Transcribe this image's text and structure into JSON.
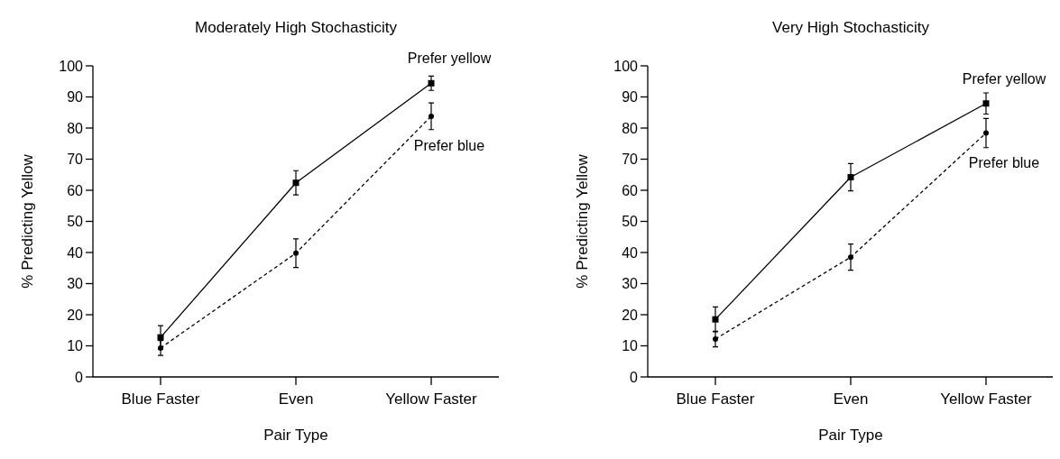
{
  "chart_data": [
    {
      "type": "line",
      "title": "Moderately High Stochasticity",
      "xlabel": "Pair Type",
      "ylabel": "% Predicting Yellow",
      "categories": [
        "Blue Faster",
        "Even",
        "Yellow Faster"
      ],
      "ylim": [
        0,
        100
      ],
      "yticks": [
        0,
        10,
        20,
        30,
        40,
        50,
        60,
        70,
        80,
        90,
        100
      ],
      "grid": false,
      "series": [
        {
          "name": "Prefer yellow",
          "color": "#000000",
          "marker": "square",
          "line_style": "solid",
          "values": [
            12.7,
            62.4,
            94.4
          ],
          "errors": [
            3.8,
            3.9,
            2.3
          ]
        },
        {
          "name": "Prefer blue",
          "color": "#000000",
          "marker": "circle",
          "line_style": "dashed",
          "values": [
            9.3,
            39.8,
            83.8
          ],
          "errors": [
            2.4,
            4.6,
            4.3
          ]
        }
      ]
    },
    {
      "type": "line",
      "title": "Very High Stochasticity",
      "xlabel": "Pair Type",
      "ylabel": "% Predicting Yellow",
      "categories": [
        "Blue Faster",
        "Even",
        "Yellow Faster"
      ],
      "ylim": [
        0,
        100
      ],
      "yticks": [
        0,
        10,
        20,
        30,
        40,
        50,
        60,
        70,
        80,
        90,
        100
      ],
      "grid": false,
      "series": [
        {
          "name": "Prefer yellow",
          "color": "#000000",
          "marker": "square",
          "line_style": "solid",
          "values": [
            18.5,
            64.2,
            87.9
          ],
          "errors": [
            4.0,
            4.4,
            3.4
          ]
        },
        {
          "name": "Prefer blue",
          "color": "#000000",
          "marker": "circle",
          "line_style": "dashed",
          "values": [
            12.2,
            38.5,
            78.4
          ],
          "errors": [
            2.5,
            4.2,
            4.7
          ]
        }
      ]
    }
  ]
}
